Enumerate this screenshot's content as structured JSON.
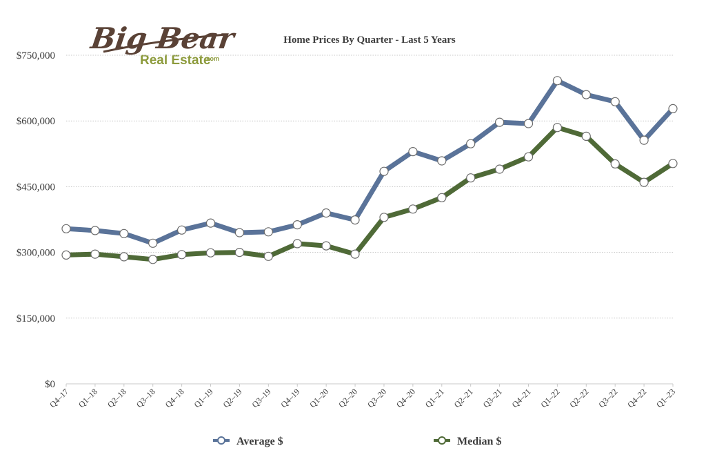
{
  "logo": {
    "line1": "Big Bear",
    "line2": "Real Estate",
    "suffix": ".com"
  },
  "chart_data": {
    "type": "line",
    "title": "Home Prices By Quarter - Last 5 Years",
    "xlabel": "",
    "ylabel": "",
    "ylim": [
      0,
      750000
    ],
    "y_ticks": [
      0,
      150000,
      300000,
      450000,
      600000,
      750000
    ],
    "y_tick_labels": [
      "$0",
      "$150,000",
      "$300,000",
      "$450,000",
      "$600,000",
      "$750,000"
    ],
    "grid": true,
    "legend_position": "bottom",
    "categories": [
      "Q4–17",
      "Q1–18",
      "Q2–18",
      "Q3–18",
      "Q4–18",
      "Q1–19",
      "Q2–19",
      "Q3–19",
      "Q4–19",
      "Q1–20",
      "Q2–20",
      "Q3–20",
      "Q4–20",
      "Q1–21",
      "Q2–21",
      "Q3–21",
      "Q4–21",
      "Q1–22",
      "Q2–22",
      "Q3–22",
      "Q4–22",
      "Q1–23"
    ],
    "series": [
      {
        "name": "Average $",
        "color": "#5a7399",
        "values": [
          354000,
          350000,
          343000,
          321000,
          351000,
          367000,
          345000,
          347000,
          363000,
          390000,
          374000,
          485000,
          530000,
          509000,
          548000,
          597000,
          594000,
          692000,
          660000,
          644000,
          556000,
          628000
        ]
      },
      {
        "name": "Median $",
        "color": "#4f6a37",
        "values": [
          294000,
          296000,
          290000,
          284000,
          295000,
          299000,
          300000,
          291000,
          320000,
          315000,
          296000,
          380000,
          399000,
          425000,
          470000,
          490000,
          518000,
          585000,
          565000,
          502000,
          460000,
          503000
        ]
      }
    ]
  }
}
